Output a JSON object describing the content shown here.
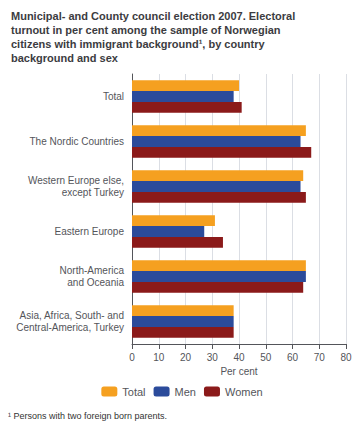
{
  "chart_data": {
    "type": "bar",
    "orientation": "horizontal",
    "title": "Municipal- and County council election 2007. Electoral\nturnout in per cent among the sample of Norwegian\ncitizens with immigrant background¹, by country\nbackground and sex",
    "annotations": [
      "¹ Persons with two foreign born parents."
    ],
    "categories": [
      "Total",
      "The Nordic Countries",
      "Western Europe else,\nexcept Turkey",
      "Eastern Europe",
      "North-America\nand Oceania",
      "Asia, Africa, South- and\nCentral-America, Turkey"
    ],
    "series": [
      {
        "name": "Total",
        "color": "#F5A020",
        "values": [
          40,
          65,
          64,
          31,
          65,
          38
        ]
      },
      {
        "name": "Men",
        "color": "#2B4B9B",
        "values": [
          38,
          63,
          63,
          27,
          65,
          38
        ]
      },
      {
        "name": "Women",
        "color": "#8B1A1A",
        "values": [
          41,
          67,
          65,
          34,
          64,
          38
        ]
      }
    ],
    "xlabel": "Per cent",
    "xlim": [
      0,
      80
    ],
    "xticks": [
      0,
      10,
      20,
      30,
      40,
      50,
      60,
      70,
      80
    ],
    "grid": true,
    "legend": "bottom"
  }
}
